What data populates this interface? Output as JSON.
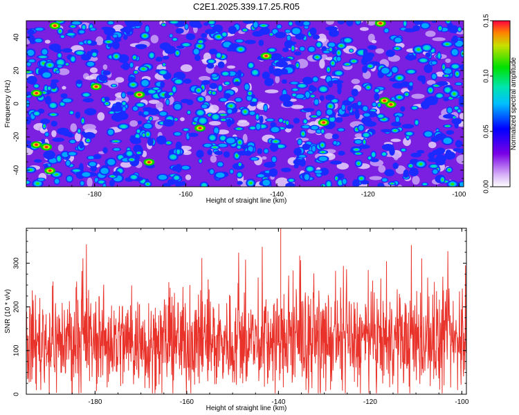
{
  "title": "C2E1.2025.339.17.25.R05",
  "chart_data": [
    {
      "type": "heatmap",
      "xlabel": "Height of straight line (km)",
      "ylabel": "Frequency (Hz)",
      "xlim": [
        -195,
        -99
      ],
      "ylim": [
        -50,
        50
      ],
      "xticks": [
        -180,
        -160,
        -140,
        -120,
        -100
      ],
      "yticks": [
        -40,
        -20,
        0,
        20,
        40
      ],
      "xtick_labels": [
        "-180",
        "-160",
        "-140",
        "-120",
        "-100"
      ],
      "ytick_labels": [
        "-40",
        "-20",
        "0",
        "20",
        "40"
      ],
      "colorbar": {
        "label": "Normalized spectral amplitude",
        "range": [
          0,
          0.15
        ],
        "ticks": [
          0,
          0.05,
          0.1,
          0.15
        ],
        "tick_labels": [
          "0.00",
          "0.05",
          "0.10",
          "0.15"
        ]
      }
    },
    {
      "type": "line",
      "xlabel": "Height of straight line (km)",
      "ylabel": "SNR (10 * v/v)",
      "xlim": [
        -195,
        -99
      ],
      "ylim": [
        0,
        380
      ],
      "xticks": [
        -180,
        -160,
        -140,
        -120,
        -100
      ],
      "yticks": [
        0,
        100,
        200,
        300
      ],
      "xtick_labels": [
        "-180",
        "-160",
        "-140",
        "-120",
        "-100"
      ],
      "ytick_labels": [
        "0",
        "100",
        "200",
        "300"
      ],
      "series": [
        {
          "name": "SNR",
          "color": "#e8322a",
          "mean": 120,
          "typical_range": [
            40,
            240
          ],
          "max": 380
        }
      ]
    }
  ]
}
